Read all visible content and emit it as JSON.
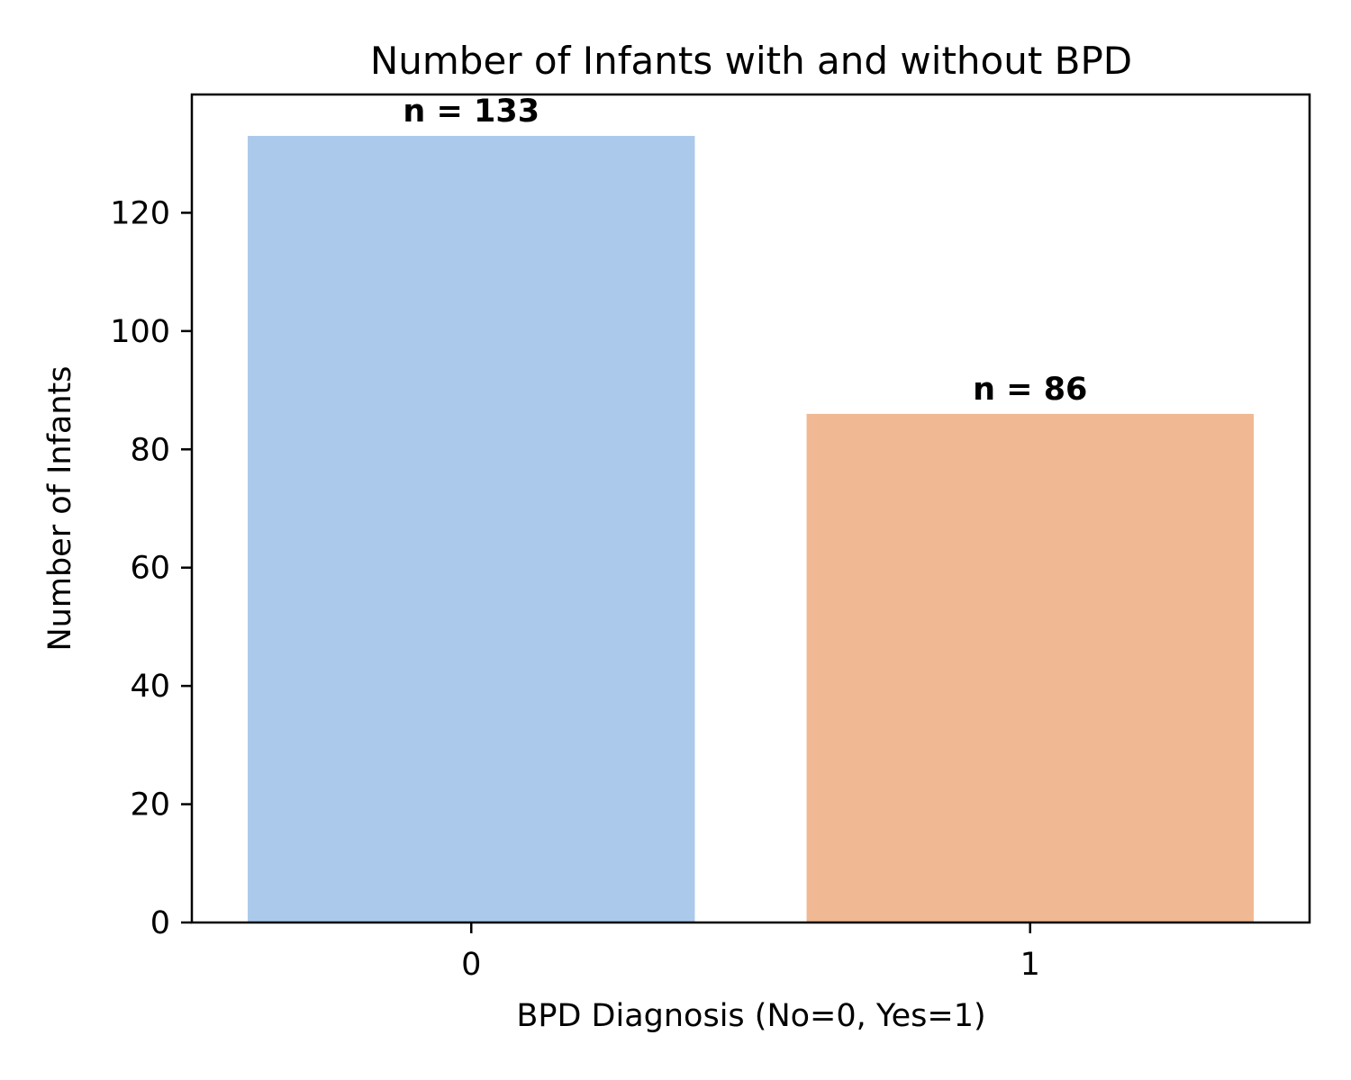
{
  "chart_data": {
    "type": "bar",
    "title": "Number of Infants with and without BPD",
    "xlabel": "BPD Diagnosis (No=0, Yes=1)",
    "ylabel": "Number of Infants",
    "categories": [
      "0",
      "1"
    ],
    "values": [
      133,
      86
    ],
    "data_labels": [
      "n = 133",
      "n = 86"
    ],
    "colors": [
      "#abc9eb",
      "#f0b893"
    ],
    "ylim": [
      0,
      140
    ],
    "yticks": [
      0,
      20,
      40,
      60,
      80,
      100,
      120
    ],
    "grid": false,
    "legend": "none"
  }
}
